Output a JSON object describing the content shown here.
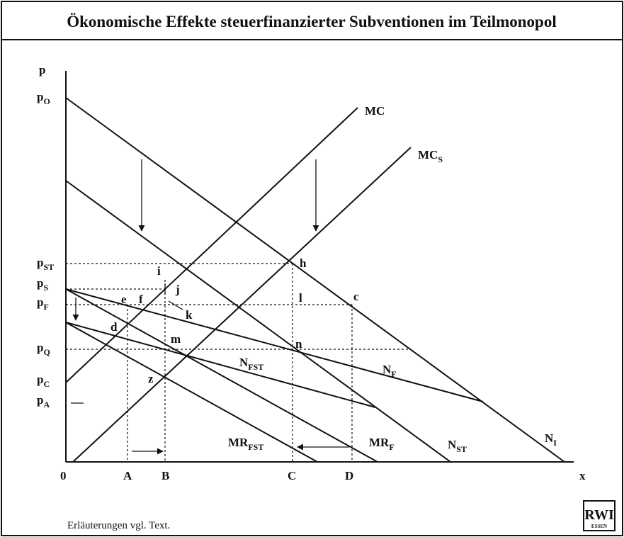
{
  "title": "Ökonomische Effekte steuerfinanzierter Subventionen im Teilmonopol",
  "axes": {
    "y": "p",
    "x": "x",
    "origin": "0"
  },
  "price_labels": [
    {
      "base": "p",
      "sub": "O"
    },
    {
      "base": "p",
      "sub": "ST"
    },
    {
      "base": "p",
      "sub": "S"
    },
    {
      "base": "p",
      "sub": "F"
    },
    {
      "base": "p",
      "sub": "Q"
    },
    {
      "base": "p",
      "sub": "C"
    },
    {
      "base": "p",
      "sub": "A"
    }
  ],
  "quantity_labels": [
    "A",
    "B",
    "C",
    "D"
  ],
  "points": [
    "i",
    "j",
    "e",
    "f",
    "k",
    "d",
    "m",
    "l",
    "h",
    "c",
    "n",
    "z"
  ],
  "curves": [
    {
      "base": "MC",
      "sub": ""
    },
    {
      "base": "MC",
      "sub": "S"
    },
    {
      "base": "N",
      "sub": "FST"
    },
    {
      "base": "N",
      "sub": "F"
    },
    {
      "base": "MR",
      "sub": "FST"
    },
    {
      "base": "MR",
      "sub": "F"
    },
    {
      "base": "N",
      "sub": "ST"
    },
    {
      "base": "N",
      "sub": "I"
    }
  ],
  "footnote": "Erläuterungen vgl. Text.",
  "logo": {
    "main": "RWI",
    "sub": "ESSEN"
  }
}
